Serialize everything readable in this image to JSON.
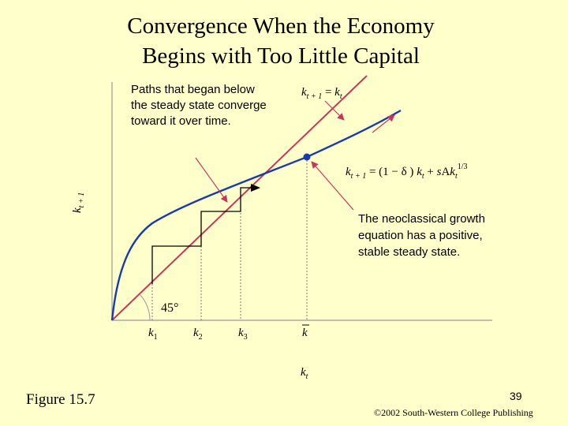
{
  "slide": {
    "title_line1": "Convergence When the Economy",
    "title_line2": "Begins with Too Little Capital",
    "figure_label": "Figure 15.7",
    "page_number": "39",
    "copyright": "©2002 South-Western College Publishing"
  },
  "diagram": {
    "y_axis_label": "k t+1",
    "x_axis_label": "k t",
    "angle_label": "45°",
    "ticks": [
      "k1",
      "k2",
      "k3",
      "k"
    ],
    "line_45_label": "k t+1 = k t",
    "curve_label": "k t+1 = (1 − δ) k t + sAk t 1/3",
    "note_top": [
      "Paths that began below",
      "the steady state converge",
      "toward it over time."
    ],
    "note_right": [
      "The neoclassical growth",
      "equation has a positive,",
      "stable steady state."
    ],
    "colors": {
      "curve": "#1a3aa8",
      "line_45": "#c03a5a",
      "arrows": "#c03a5a",
      "staircase": "#000000",
      "dashed": "#777777"
    }
  }
}
